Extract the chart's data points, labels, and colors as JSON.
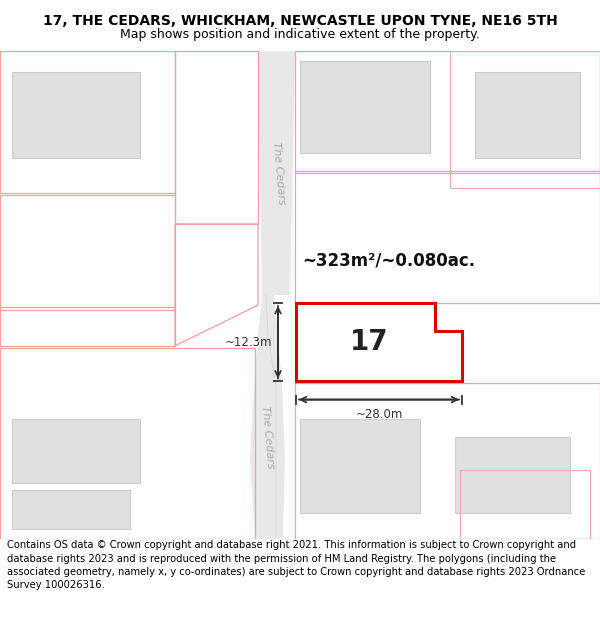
{
  "title_line1": "17, THE CEDARS, WHICKHAM, NEWCASTLE UPON TYNE, NE16 5TH",
  "title_line2": "Map shows position and indicative extent of the property.",
  "footer_text": "Contains OS data © Crown copyright and database right 2021. This information is subject to Crown copyright and database rights 2023 and is reproduced with the permission of HM Land Registry. The polygons (including the associated geometry, namely x, y co-ordinates) are subject to Crown copyright and database rights 2023 Ordnance Survey 100026316.",
  "map_bg": "#ffffff",
  "road_fill": "#e8e8e8",
  "plot_outline_color": "#dd0000",
  "plot_fill_color": "#ffffff",
  "building_fill": "#e0e0e0",
  "building_outline": "#cccccc",
  "nearby_outline_color": "#f0a0a0",
  "nearby_outline_color2": "#e8b0b0",
  "dimension_color": "#333333",
  "label_number": "17",
  "area_label": "~323m²/~0.080ac.",
  "width_label": "~28.0m",
  "height_label": "~12.3m",
  "street_name": "The Cedars",
  "title_fontsize": 10,
  "subtitle_fontsize": 9,
  "footer_fontsize": 7.2,
  "street_fontsize": 8,
  "street_color": "#aaaaaa"
}
